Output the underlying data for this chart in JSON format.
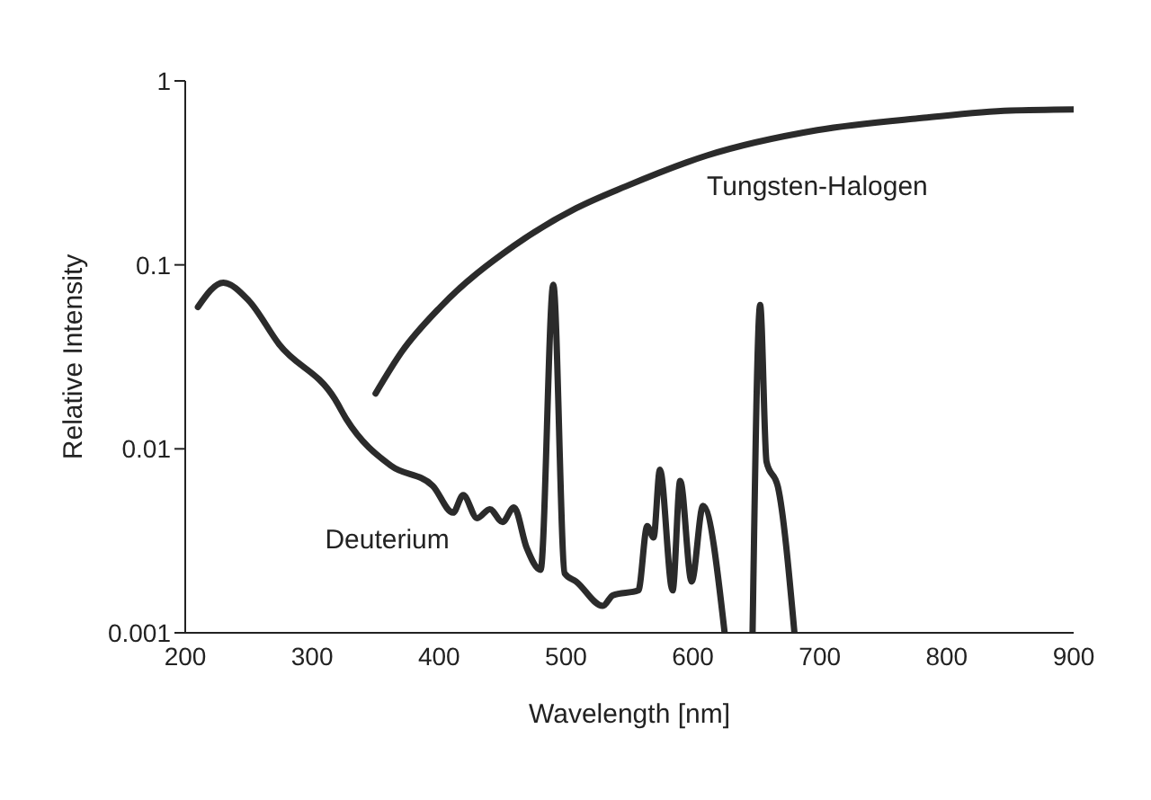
{
  "chart_data": {
    "type": "line",
    "xlabel": "Wavelength [nm]",
    "ylabel": "Relative Intensity",
    "log": "y",
    "xlim": [
      200,
      900
    ],
    "xticks": [
      200,
      300,
      400,
      500,
      600,
      700,
      800,
      900
    ],
    "ylim": [
      0.001,
      1
    ],
    "yticks": [
      0.001,
      0.01,
      0.1,
      1
    ],
    "grid": false,
    "legend": false,
    "marker": "none",
    "line_style": "solid",
    "series": [
      {
        "name": "Tungsten-Halogen",
        "color": "#2b2b2b",
        "x": [
          350,
          371,
          401,
          459,
          508,
          547,
          611,
          698,
          782,
          850,
          900
        ],
        "values": [
          0.02,
          0.034,
          0.059,
          0.127,
          0.203,
          0.267,
          0.393,
          0.54,
          0.63,
          0.69,
          0.7
        ]
      },
      {
        "name": "Deuterium",
        "color": "#2b2b2b",
        "x": [
          210,
          230,
          250,
          274,
          318,
          327,
          362,
          395,
          411,
          419,
          430,
          440,
          450,
          459,
          469,
          480,
          490,
          499,
          508,
          529,
          537,
          557,
          564,
          569,
          574,
          584,
          590,
          599,
          608,
          625,
          636,
          647,
          653,
          658,
          667,
          680
        ],
        "values": [
          0.059,
          0.08,
          0.064,
          0.037,
          0.0186,
          0.0145,
          0.0081,
          0.0063,
          0.0045,
          0.0056,
          0.0042,
          0.0047,
          0.004,
          0.0048,
          0.0029,
          0.0022,
          0.078,
          0.0021,
          0.0019,
          0.0014,
          0.0016,
          0.0017,
          0.0038,
          0.0033,
          0.0077,
          0.0017,
          0.0067,
          0.0019,
          0.0049,
          0.001,
          null,
          0.001,
          0.0605,
          0.0085,
          0.0062,
          0.001
        ]
      }
    ]
  }
}
